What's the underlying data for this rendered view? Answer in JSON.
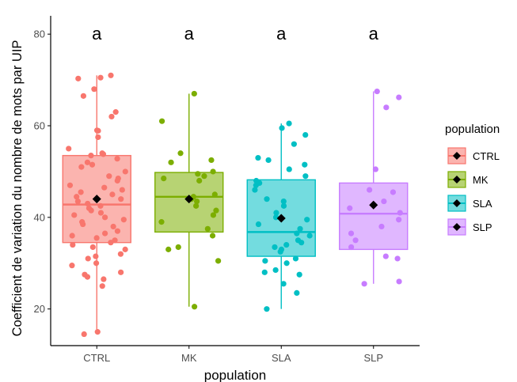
{
  "chart_data": {
    "type": "boxplot",
    "xlabel": "population",
    "ylabel": "Coefficient de variation du nombre de mots par UIP",
    "ylim": [
      12,
      84
    ],
    "yticks": [
      20,
      40,
      60,
      80
    ],
    "grid": false,
    "legend_title": "population",
    "legend_position": "right",
    "categories": [
      "CTRL",
      "MK",
      "SLA",
      "SLP"
    ],
    "colors": [
      "#f8766d",
      "#7cae00",
      "#00bfc4",
      "#c77cff"
    ],
    "significance_letters": [
      "a",
      "a",
      "a",
      "a"
    ],
    "groups": [
      {
        "name": "CTRL",
        "min": 14.5,
        "q1": 34.5,
        "median": 42.8,
        "q3": 53.5,
        "max": 71.0,
        "mean": 44.0,
        "points": [
          70.3,
          71.0,
          70.5,
          68.0,
          66.5,
          63.0,
          62.0,
          59.0,
          58.9,
          57.5,
          55.0,
          54.0,
          53.8,
          53.5,
          52.8,
          52.0,
          51.5,
          51.0,
          50.0,
          49.0,
          48.5,
          48.0,
          47.0,
          46.5,
          46.0,
          45.5,
          45.0,
          44.5,
          44.0,
          43.5,
          43.0,
          42.5,
          42.0,
          41.5,
          41.0,
          40.5,
          40.0,
          39.5,
          39.0,
          38.5,
          38.0,
          37.0,
          36.5,
          36.0,
          35.5,
          35.0,
          34.5,
          34.0,
          33.5,
          33.0,
          32.0,
          31.5,
          31.0,
          30.0,
          29.5,
          28.0,
          27.5,
          27.0,
          26.5,
          25.0,
          15.0,
          14.5
        ]
      },
      {
        "name": "MK",
        "min": 20.5,
        "q1": 36.8,
        "median": 44.5,
        "q3": 49.8,
        "max": 67.0,
        "mean": 44.0,
        "points": [
          67.0,
          61.0,
          54.0,
          52.5,
          52.0,
          50.0,
          49.5,
          49.0,
          48.5,
          48.0,
          45.0,
          44.5,
          44.0,
          43.5,
          42.5,
          41.5,
          40.5,
          39.0,
          37.5,
          36.0,
          33.5,
          33.0,
          30.5,
          20.5
        ]
      },
      {
        "name": "SLA",
        "min": 20.0,
        "q1": 31.5,
        "median": 36.8,
        "q3": 48.2,
        "max": 60.5,
        "mean": 39.8,
        "points": [
          60.5,
          59.5,
          58.0,
          56.0,
          53.0,
          52.5,
          51.5,
          50.5,
          49.0,
          48.0,
          47.5,
          47.0,
          46.0,
          44.0,
          43.5,
          42.5,
          41.0,
          40.0,
          39.5,
          38.5,
          37.5,
          36.5,
          36.0,
          35.0,
          34.5,
          34.0,
          33.5,
          33.0,
          32.5,
          31.0,
          30.5,
          30.0,
          28.5,
          28.0,
          27.5,
          25.5,
          23.5,
          20.0
        ]
      },
      {
        "name": "SLP",
        "min": 25.5,
        "q1": 33.0,
        "median": 40.8,
        "q3": 47.5,
        "max": 67.5,
        "mean": 42.7,
        "points": [
          67.5,
          66.2,
          64.0,
          50.5,
          46.0,
          45.5,
          43.5,
          42.0,
          41.0,
          39.5,
          38.0,
          36.5,
          35.0,
          33.5,
          31.5,
          31.0,
          26.0,
          25.5
        ]
      }
    ]
  }
}
